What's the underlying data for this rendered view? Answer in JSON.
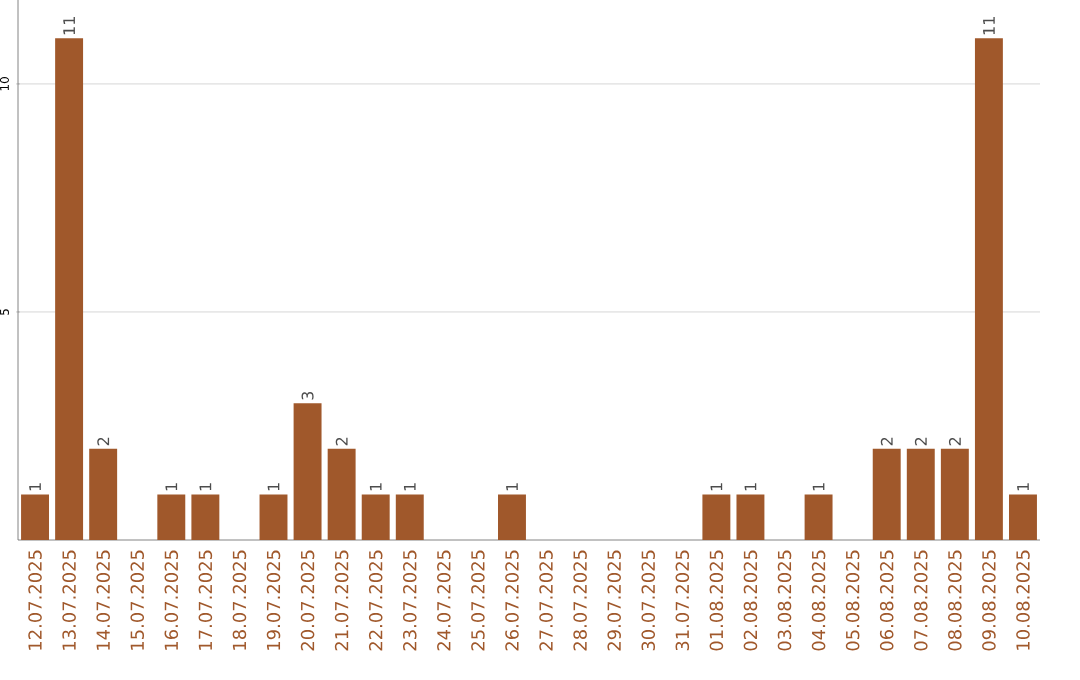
{
  "chart_data": {
    "type": "bar",
    "categories": [
      "12.07.2025",
      "13.07.2025",
      "14.07.2025",
      "15.07.2025",
      "16.07.2025",
      "17.07.2025",
      "18.07.2025",
      "19.07.2025",
      "20.07.2025",
      "21.07.2025",
      "22.07.2025",
      "23.07.2025",
      "24.07.2025",
      "25.07.2025",
      "26.07.2025",
      "27.07.2025",
      "28.07.2025",
      "29.07.2025",
      "30.07.2025",
      "31.07.2025",
      "01.08.2025",
      "02.08.2025",
      "03.08.2025",
      "04.08.2025",
      "05.08.2025",
      "06.08.2025",
      "07.08.2025",
      "08.08.2025",
      "09.08.2025",
      "10.08.2025"
    ],
    "values": [
      1,
      11,
      2,
      0,
      1,
      1,
      0,
      1,
      3,
      2,
      1,
      1,
      0,
      0,
      1,
      0,
      0,
      0,
      0,
      0,
      1,
      1,
      0,
      1,
      0,
      2,
      2,
      2,
      11,
      1
    ],
    "value_labels": [
      "1",
      "11",
      "2",
      null,
      "1",
      "1",
      null,
      "1",
      "3",
      "2",
      "1",
      "1",
      null,
      null,
      "1",
      null,
      null,
      null,
      null,
      null,
      "1",
      "1",
      null,
      "1",
      null,
      "2",
      "2",
      "2",
      "11",
      "1"
    ],
    "color": "#a0582b",
    "ylim": [
      0,
      11.84
    ],
    "yticks": [
      5,
      10
    ],
    "grid": "y"
  }
}
